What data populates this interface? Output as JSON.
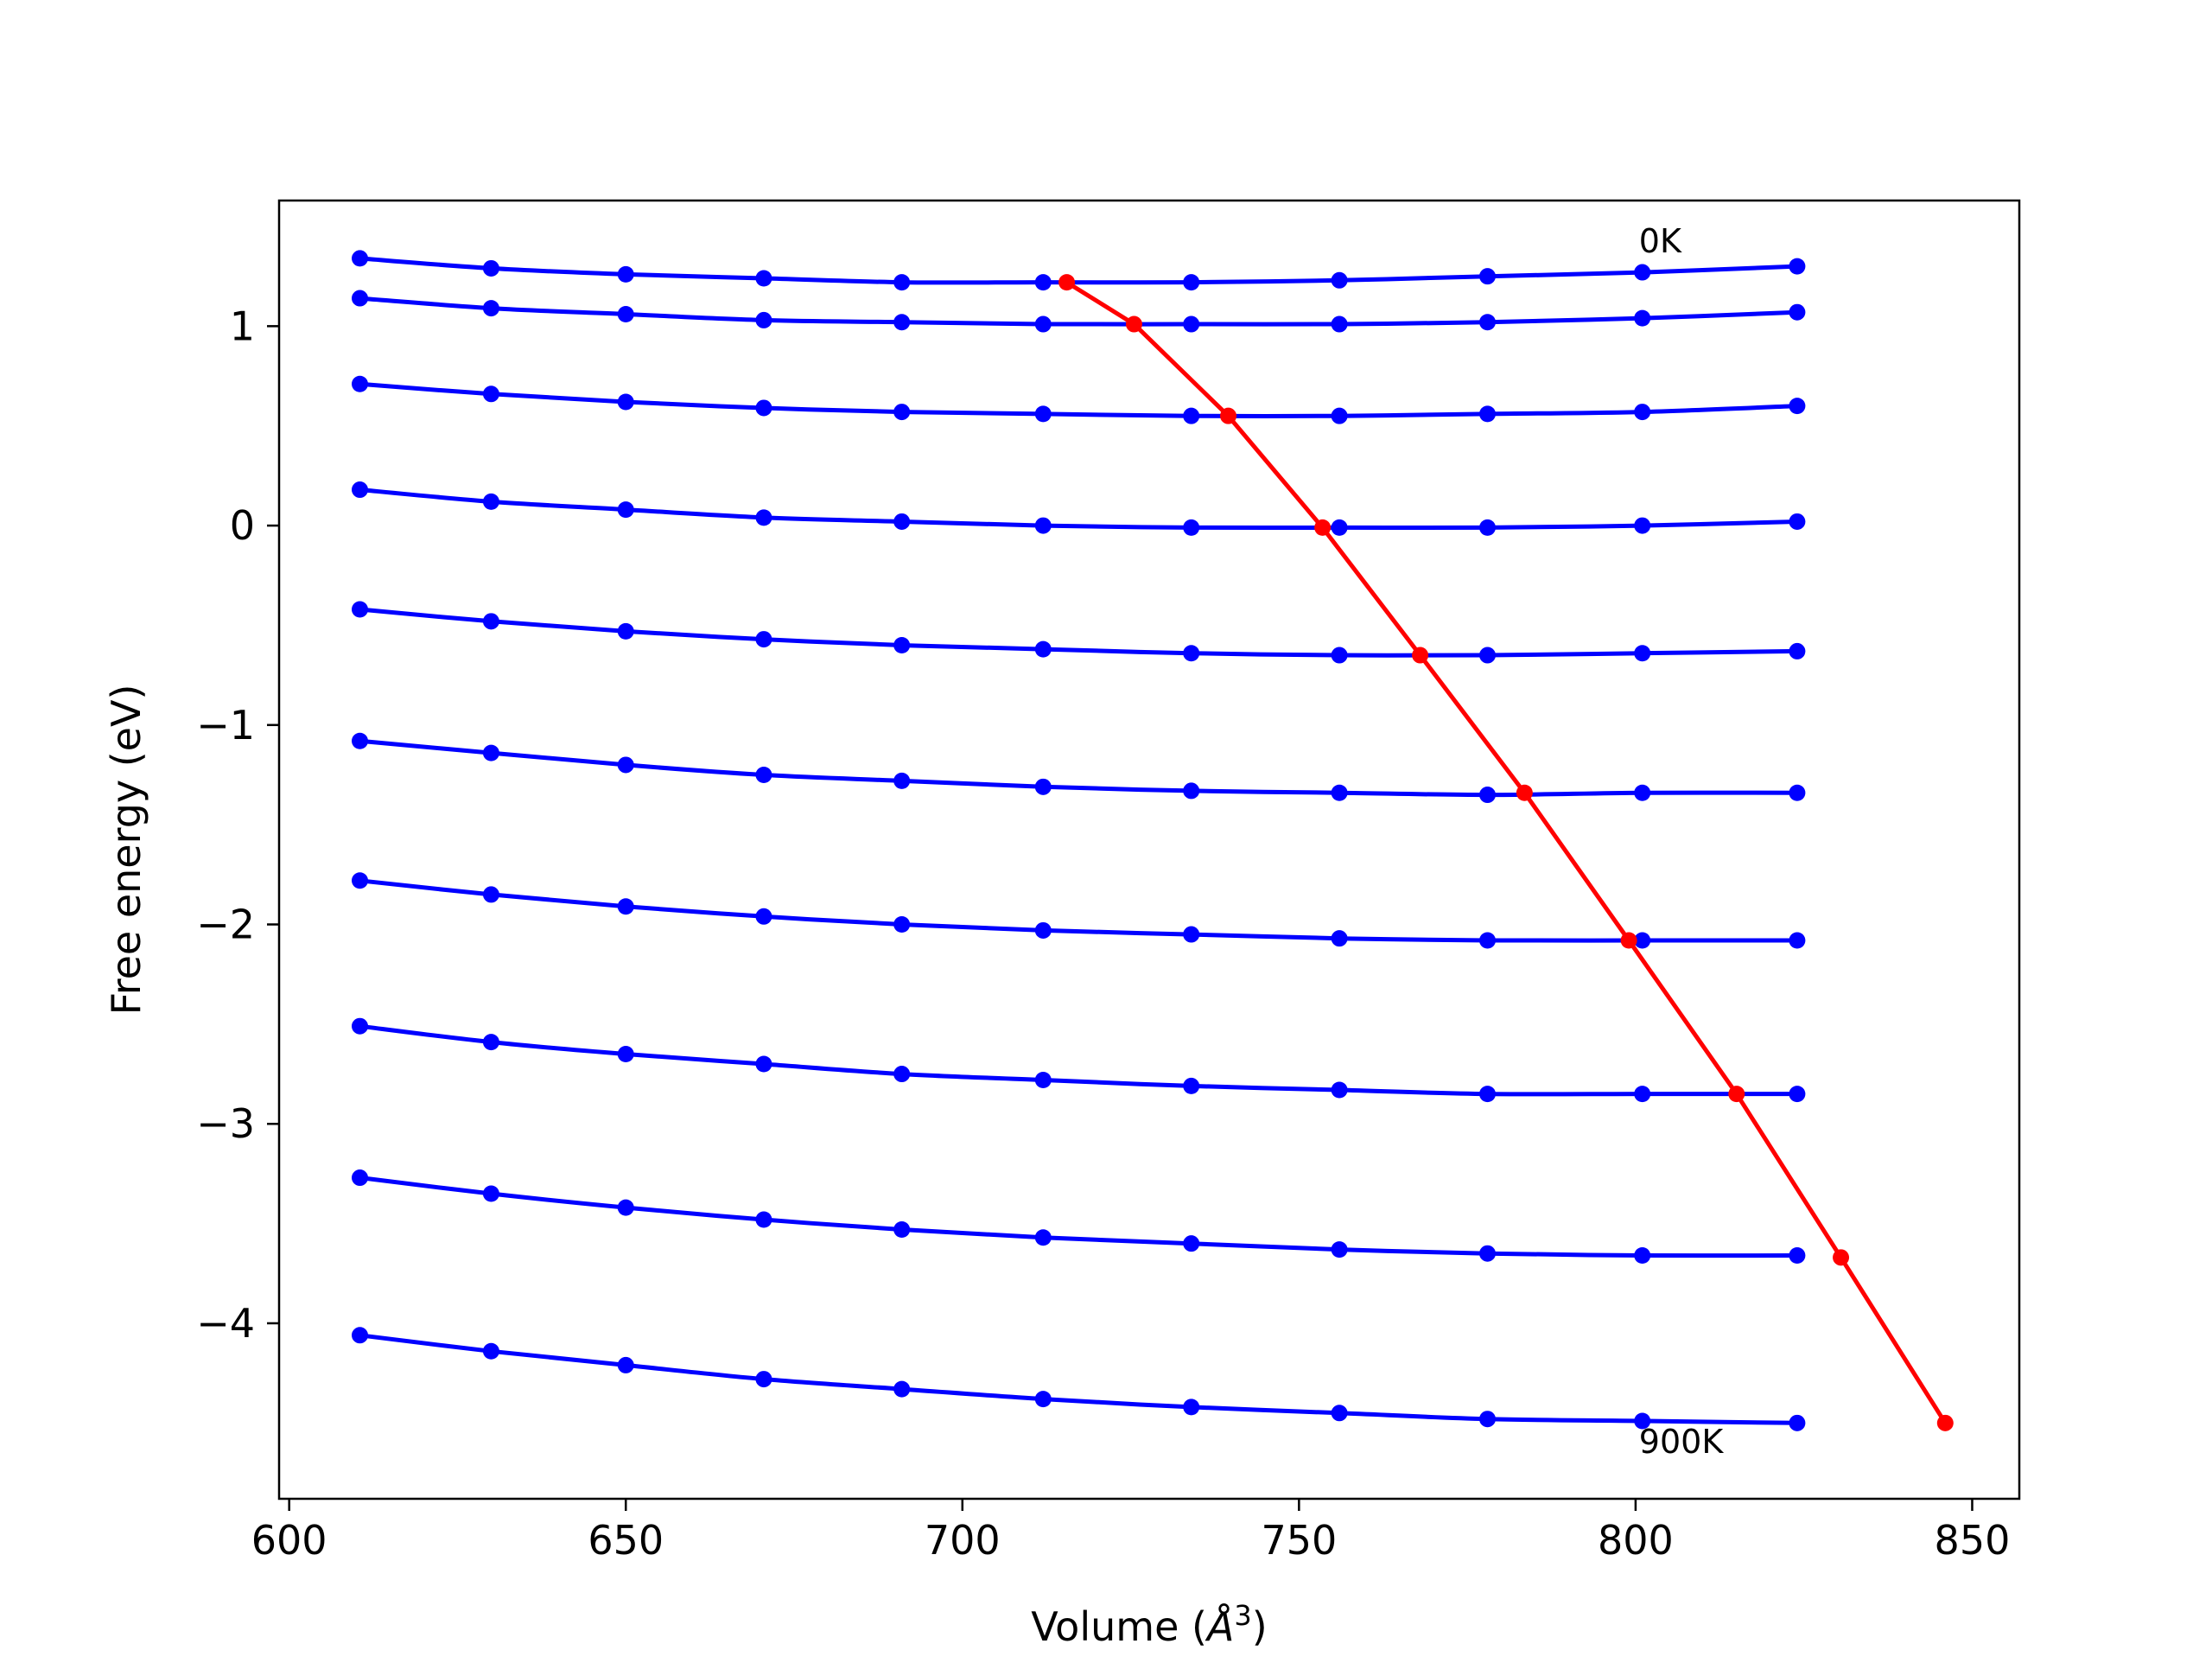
{
  "chart_data": {
    "type": "line",
    "title": "",
    "xlabel": "Volume (",
    "xlabel_symbol": "Å",
    "xlabel_exp": "3",
    "xlabel_close": ")",
    "ylabel": "Free energy (eV)",
    "xlim": [
      598.5,
      857
    ],
    "ylim": [
      -4.88,
      1.63
    ],
    "xticks": [
      600,
      650,
      700,
      750,
      800,
      850
    ],
    "yticks": [
      1,
      0,
      -1,
      -2,
      -3,
      -4
    ],
    "xtick_labels": [
      "600",
      "650",
      "700",
      "750",
      "800",
      "850"
    ],
    "ytick_labels": [
      "1",
      "0",
      "−1",
      "−2",
      "−3",
      "−4"
    ],
    "grid": false,
    "colors": {
      "isotherm": "#0000ff",
      "minimum": "#ff0000",
      "axes": "#000000",
      "background": "#ffffff"
    },
    "x": [
      610.5,
      630,
      650,
      670.5,
      691,
      712,
      734,
      756,
      778,
      801,
      824
    ],
    "series": [
      {
        "values": [
          1.34,
          1.29,
          1.26,
          1.24,
          1.22,
          1.22,
          1.22,
          1.23,
          1.25,
          1.27,
          1.3
        ]
      },
      {
        "values": [
          1.14,
          1.09,
          1.06,
          1.03,
          1.02,
          1.01,
          1.01,
          1.01,
          1.02,
          1.04,
          1.07
        ]
      },
      {
        "values": [
          0.71,
          0.66,
          0.62,
          0.59,
          0.57,
          0.56,
          0.55,
          0.55,
          0.56,
          0.57,
          0.6
        ]
      },
      {
        "values": [
          0.18,
          0.12,
          0.08,
          0.04,
          0.02,
          0.0,
          -0.01,
          -0.01,
          -0.01,
          0.0,
          0.02
        ]
      },
      {
        "values": [
          -0.42,
          -0.48,
          -0.53,
          -0.57,
          -0.6,
          -0.62,
          -0.64,
          -0.65,
          -0.65,
          -0.64,
          -0.63
        ]
      },
      {
        "values": [
          -1.08,
          -1.14,
          -1.2,
          -1.25,
          -1.28,
          -1.31,
          -1.33,
          -1.34,
          -1.35,
          -1.34,
          -1.34
        ]
      },
      {
        "values": [
          -1.78,
          -1.85,
          -1.91,
          -1.96,
          -2.0,
          -2.03,
          -2.05,
          -2.07,
          -2.08,
          -2.08,
          -2.08
        ]
      },
      {
        "values": [
          -2.51,
          -2.59,
          -2.65,
          -2.7,
          -2.75,
          -2.78,
          -2.81,
          -2.83,
          -2.85,
          -2.85,
          -2.85
        ]
      },
      {
        "values": [
          -3.27,
          -3.35,
          -3.42,
          -3.48,
          -3.53,
          -3.57,
          -3.6,
          -3.63,
          -3.65,
          -3.66,
          -3.66
        ]
      },
      {
        "values": [
          -4.06,
          -4.14,
          -4.21,
          -4.28,
          -4.33,
          -4.38,
          -4.42,
          -4.45,
          -4.48,
          -4.49,
          -4.5
        ]
      }
    ],
    "minima": {
      "x": [
        715.5,
        725.5,
        739.5,
        753.5,
        768,
        783.5,
        799,
        815,
        830.5,
        846
      ],
      "y": [
        1.22,
        1.01,
        0.55,
        -0.01,
        -0.65,
        -1.34,
        -2.08,
        -2.85,
        -3.67,
        -4.5
      ]
    },
    "annotations": [
      {
        "text": "0K",
        "x": 800.5,
        "y": 1.37
      },
      {
        "text": "900K",
        "x": 800.5,
        "y": -4.65
      }
    ]
  }
}
